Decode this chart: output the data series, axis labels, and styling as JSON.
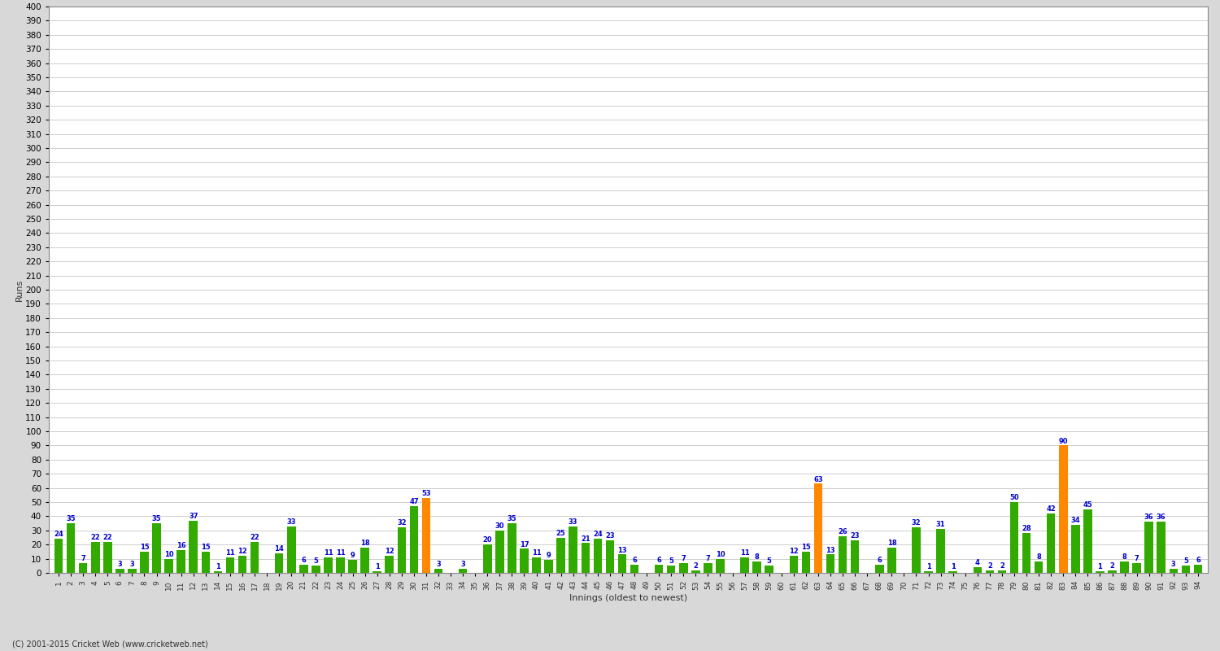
{
  "xlabel": "Innings (oldest to newest)",
  "ylabel": "Runs",
  "bar_values": [
    24,
    35,
    7,
    22,
    22,
    3,
    3,
    15,
    35,
    10,
    16,
    37,
    15,
    1,
    11,
    12,
    22,
    0,
    14,
    33,
    6,
    5,
    11,
    11,
    9,
    18,
    1,
    12,
    32,
    47,
    53,
    3,
    0,
    3,
    0,
    20,
    30,
    35,
    17,
    11,
    9,
    25,
    33,
    21,
    24,
    23,
    13,
    6,
    0,
    6,
    5,
    7,
    2,
    7,
    10,
    0,
    11,
    8,
    5,
    0,
    12,
    15,
    63,
    13,
    26,
    23,
    0,
    6,
    18,
    0,
    32,
    1,
    31,
    1,
    0,
    4,
    2,
    2,
    50,
    28,
    8,
    42,
    90,
    34,
    45,
    1,
    2,
    8,
    7,
    36,
    36,
    3,
    5,
    6
  ],
  "bar_colors": [
    "#33aa00",
    "#33aa00",
    "#33aa00",
    "#33aa00",
    "#33aa00",
    "#33aa00",
    "#33aa00",
    "#33aa00",
    "#33aa00",
    "#33aa00",
    "#33aa00",
    "#33aa00",
    "#33aa00",
    "#33aa00",
    "#33aa00",
    "#33aa00",
    "#33aa00",
    "#33aa00",
    "#33aa00",
    "#33aa00",
    "#33aa00",
    "#33aa00",
    "#33aa00",
    "#33aa00",
    "#33aa00",
    "#33aa00",
    "#33aa00",
    "#33aa00",
    "#33aa00",
    "#33aa00",
    "#ff8800",
    "#33aa00",
    "#33aa00",
    "#33aa00",
    "#33aa00",
    "#33aa00",
    "#33aa00",
    "#33aa00",
    "#33aa00",
    "#33aa00",
    "#33aa00",
    "#33aa00",
    "#33aa00",
    "#33aa00",
    "#33aa00",
    "#33aa00",
    "#33aa00",
    "#33aa00",
    "#33aa00",
    "#33aa00",
    "#33aa00",
    "#33aa00",
    "#33aa00",
    "#33aa00",
    "#33aa00",
    "#33aa00",
    "#33aa00",
    "#33aa00",
    "#33aa00",
    "#33aa00",
    "#33aa00",
    "#33aa00",
    "#ff8800",
    "#33aa00",
    "#33aa00",
    "#33aa00",
    "#33aa00",
    "#33aa00",
    "#33aa00",
    "#33aa00",
    "#33aa00",
    "#33aa00",
    "#33aa00",
    "#33aa00",
    "#33aa00",
    "#33aa00",
    "#33aa00",
    "#33aa00",
    "#33aa00",
    "#33aa00",
    "#33aa00",
    "#33aa00",
    "#ff8800",
    "#33aa00",
    "#33aa00",
    "#33aa00",
    "#33aa00",
    "#33aa00",
    "#33aa00",
    "#33aa00",
    "#33aa00",
    "#33aa00",
    "#33aa00",
    "#33aa00"
  ],
  "x_labels": [
    "1",
    "2",
    "3",
    "4",
    "5",
    "6",
    "7",
    "8",
    "9",
    "10",
    "11",
    "12",
    "13",
    "14",
    "15",
    "16",
    "17",
    "18",
    "19",
    "20",
    "21",
    "22",
    "23",
    "24",
    "25",
    "26",
    "27",
    "28",
    "29",
    "30",
    "31",
    "32",
    "33",
    "34",
    "35",
    "36",
    "37",
    "38",
    "39",
    "40",
    "41",
    "42",
    "43",
    "44",
    "45",
    "46",
    "47",
    "48",
    "49",
    "50",
    "51",
    "52",
    "53",
    "54",
    "55",
    "56",
    "57",
    "58",
    "59",
    "60",
    "61",
    "62",
    "63",
    "64",
    "65",
    "66",
    "67",
    "68",
    "69",
    "70",
    "71",
    "72",
    "73",
    "74",
    "75",
    "76",
    "77",
    "78",
    "79",
    "80",
    "81",
    "82",
    "83",
    "84",
    "85",
    "86",
    "87",
    "88",
    "89",
    "90",
    "91",
    "92",
    "93",
    "94"
  ],
  "ylim": [
    0,
    400
  ],
  "yticks": [
    0,
    10,
    20,
    30,
    40,
    50,
    60,
    70,
    80,
    90,
    100,
    110,
    120,
    130,
    140,
    150,
    160,
    170,
    180,
    190,
    200,
    210,
    220,
    230,
    240,
    250,
    260,
    270,
    280,
    290,
    300,
    310,
    320,
    330,
    340,
    350,
    360,
    370,
    380,
    390,
    400
  ],
  "background_color": "#d8d8d8",
  "plot_background": "#ffffff",
  "grid_color": "#bbbbbb",
  "bar_label_color": "#0000cc",
  "bar_label_fontsize": 6.0,
  "axis_label_fontsize": 8,
  "tick_fontsize": 7.5,
  "xtick_fontsize": 6.5,
  "copyright": "(C) 2001-2015 Cricket Web (www.cricketweb.net)"
}
